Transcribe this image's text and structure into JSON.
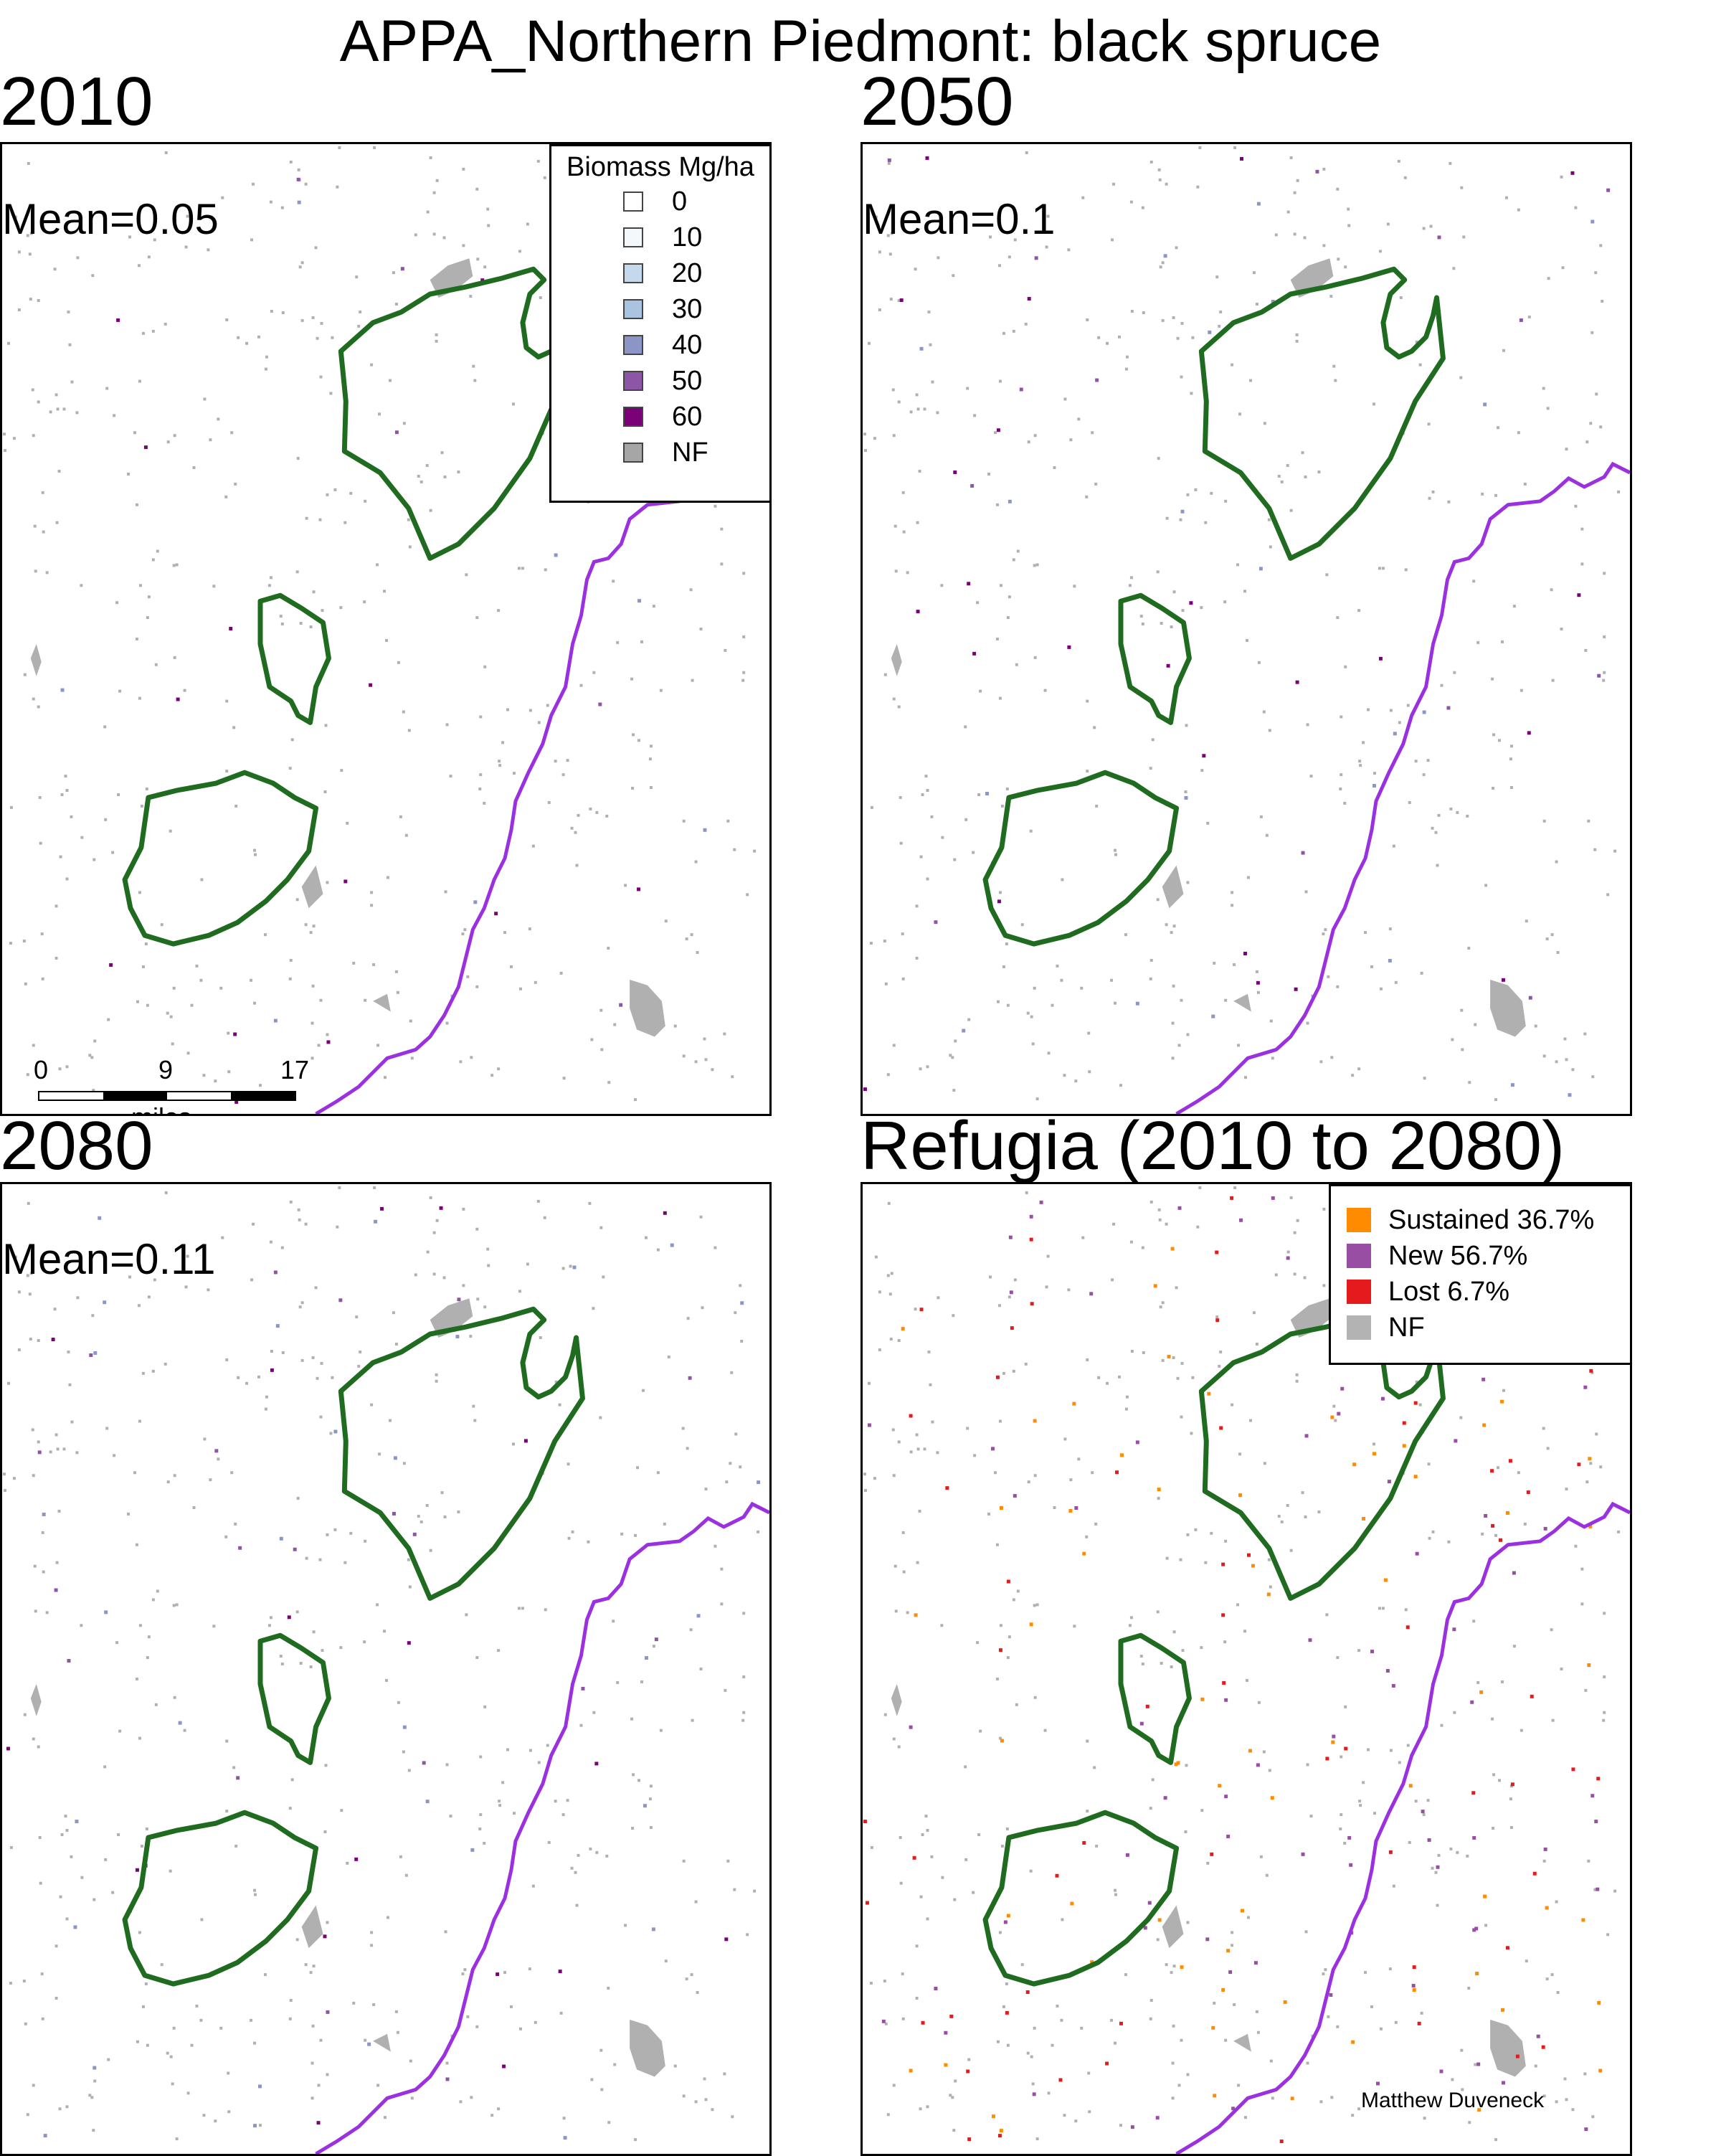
{
  "title": "APPA_Northern Piedmont: black spruce",
  "panels": [
    {
      "label": "2010",
      "mean": "Mean=0.05"
    },
    {
      "label": "2050",
      "mean": "Mean=0.1"
    },
    {
      "label": "2080",
      "mean": "Mean=0.11"
    },
    {
      "label": "Refugia (2010 to 2080)",
      "mean": ""
    }
  ],
  "biomass_legend": {
    "title": "Biomass Mg/ha",
    "items": [
      {
        "label": "0",
        "color": "#ffffff"
      },
      {
        "label": "10",
        "color": "#f4f8fb"
      },
      {
        "label": "20",
        "color": "#c6d9ec"
      },
      {
        "label": "30",
        "color": "#a9c3e0"
      },
      {
        "label": "40",
        "color": "#8c96c6"
      },
      {
        "label": "50",
        "color": "#8c55a5"
      },
      {
        "label": "60",
        "color": "#7a0177"
      },
      {
        "label": "NF",
        "color": "#a6a6a6"
      }
    ]
  },
  "refugia_legend": {
    "items": [
      {
        "label": "Sustained 36.7%",
        "color": "#ff8c00"
      },
      {
        "label": "New 56.7%",
        "color": "#984ea3"
      },
      {
        "label": "Lost 6.7%",
        "color": "#e41a1c"
      },
      {
        "label": "NF",
        "color": "#b3b3b3"
      }
    ]
  },
  "scalebar": {
    "ticks": [
      "0",
      "9",
      "17"
    ],
    "unit": "miles"
  },
  "credit": "Matthew Duveneck",
  "map_colors": {
    "boundary": "#1f6b1f",
    "state_line": "#9b30e0",
    "nonforest": "#b0b0b0"
  }
}
